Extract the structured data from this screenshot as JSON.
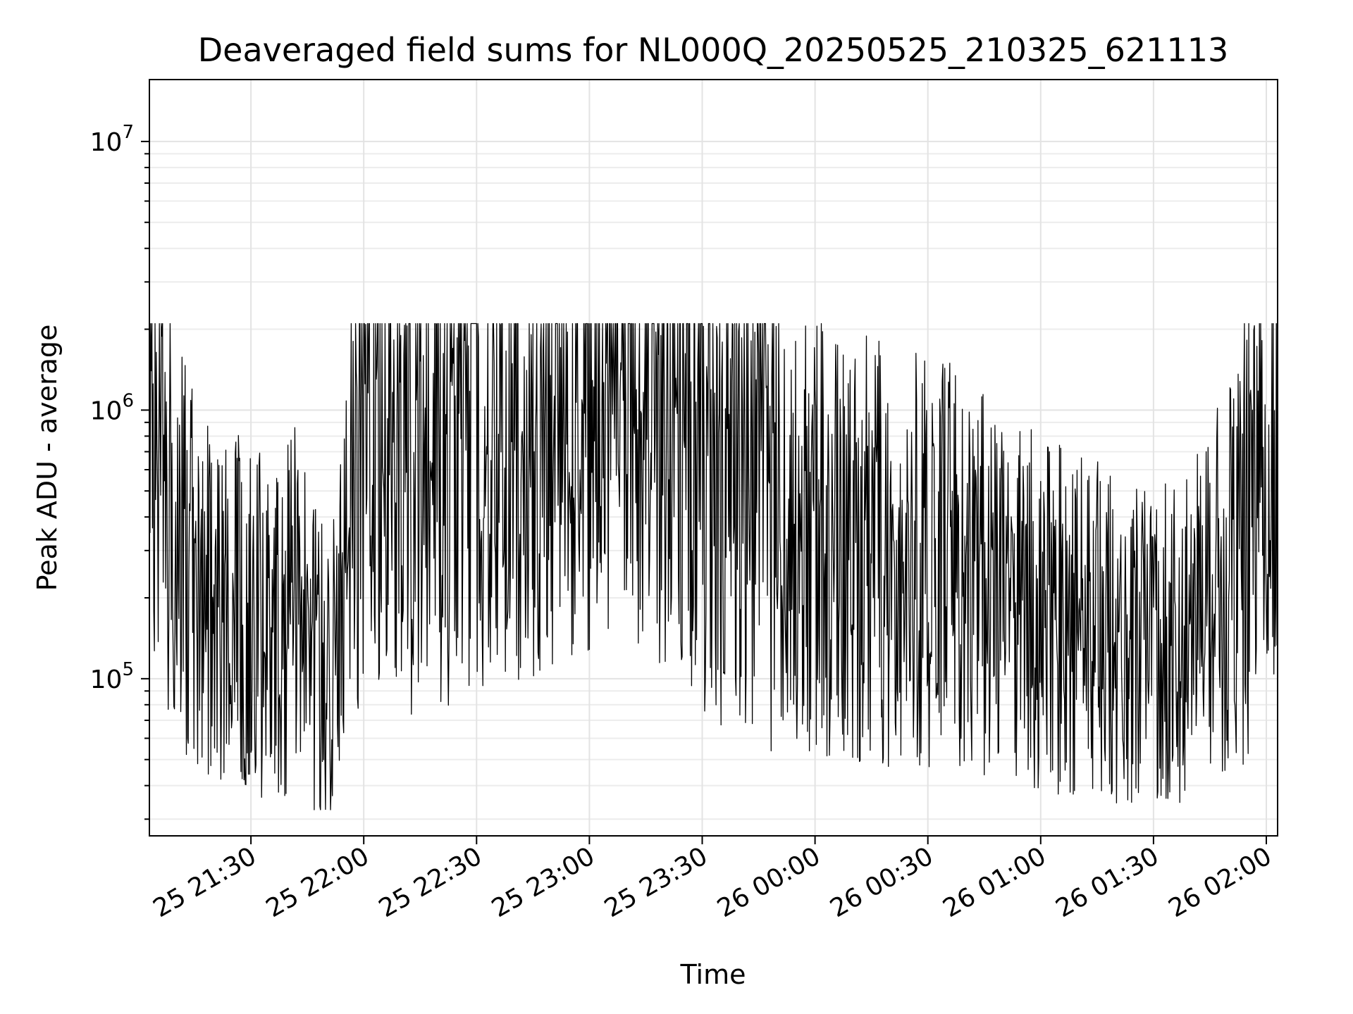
{
  "chart_data": {
    "type": "line",
    "title": "Deaveraged field sums for NL000Q_20250525_210325_621113",
    "xlabel": "Time",
    "ylabel": "Peak ADU - average",
    "xlim": [
      "2025-05-25 21:03",
      "2025-05-26 02:03"
    ],
    "ylim": [
      26000,
      17000000
    ],
    "yscale": "log",
    "grid": true,
    "xticks": [
      "25 21:30",
      "25 22:00",
      "25 22:30",
      "25 23:00",
      "25 23:30",
      "26 00:00",
      "26 00:30",
      "26 01:00",
      "26 01:30",
      "26 02:00"
    ],
    "yticks": [
      {
        "value": 100000,
        "base": "10",
        "exp": "5"
      },
      {
        "value": 1000000,
        "base": "10",
        "exp": "6"
      },
      {
        "value": 10000000,
        "base": "10",
        "exp": "7"
      }
    ],
    "series": [
      {
        "color": "#000000",
        "x": [
          "2025-05-25 21:03",
          "2025-05-25 21:05",
          "2025-05-25 21:08",
          "2025-05-25 21:10",
          "2025-05-25 21:12",
          "2025-05-25 21:15",
          "2025-05-25 21:18",
          "2025-05-25 21:22",
          "2025-05-25 21:26",
          "2025-05-25 21:30",
          "2025-05-25 21:34",
          "2025-05-25 21:38",
          "2025-05-25 21:42",
          "2025-05-25 21:46",
          "2025-05-25 21:50",
          "2025-05-25 21:54",
          "2025-05-25 21:58",
          "2025-05-25 22:02",
          "2025-05-25 22:06",
          "2025-05-25 22:10",
          "2025-05-25 22:15",
          "2025-05-25 22:20",
          "2025-05-25 22:25",
          "2025-05-25 22:30",
          "2025-05-25 22:35",
          "2025-05-25 22:40",
          "2025-05-25 22:45",
          "2025-05-25 22:50",
          "2025-05-25 22:55",
          "2025-05-25 23:00",
          "2025-05-25 23:05",
          "2025-05-25 23:10",
          "2025-05-25 23:15",
          "2025-05-25 23:20",
          "2025-05-25 23:25",
          "2025-05-25 23:30",
          "2025-05-25 23:35",
          "2025-05-25 23:40",
          "2025-05-25 23:45",
          "2025-05-25 23:50",
          "2025-05-25 23:55",
          "2025-05-26 00:00",
          "2025-05-26 00:05",
          "2025-05-26 00:10",
          "2025-05-26 00:15",
          "2025-05-26 00:20",
          "2025-05-26 00:25",
          "2025-05-26 00:30",
          "2025-05-26 00:35",
          "2025-05-26 00:40",
          "2025-05-26 00:45",
          "2025-05-26 00:50",
          "2025-05-26 00:55",
          "2025-05-26 01:00",
          "2025-05-26 01:05",
          "2025-05-26 01:10",
          "2025-05-26 01:15",
          "2025-05-26 01:20",
          "2025-05-26 01:25",
          "2025-05-26 01:30",
          "2025-05-26 01:35",
          "2025-05-26 01:40",
          "2025-05-26 01:45",
          "2025-05-26 01:50",
          "2025-05-26 01:55",
          "2025-05-26 02:00",
          "2025-05-26 02:03"
        ],
        "y": [
          1700000,
          650000,
          500000,
          400000,
          300000,
          250000,
          200000,
          150000,
          200000,
          180000,
          150000,
          140000,
          200000,
          120000,
          110000,
          150000,
          600000,
          700000,
          600000,
          500000,
          650000,
          600000,
          700000,
          700000,
          700000,
          750000,
          800000,
          850000,
          900000,
          950000,
          1000000,
          950000,
          900000,
          850000,
          800000,
          600000,
          500000,
          450000,
          400000,
          380000,
          350000,
          350000,
          330000,
          300000,
          300000,
          280000,
          280000,
          280000,
          270000,
          250000,
          230000,
          200000,
          180000,
          180000,
          170000,
          160000,
          150000,
          140000,
          130000,
          130000,
          130000,
          150000,
          180000,
          250000,
          350000,
          400000,
          450000
        ]
      }
    ]
  }
}
